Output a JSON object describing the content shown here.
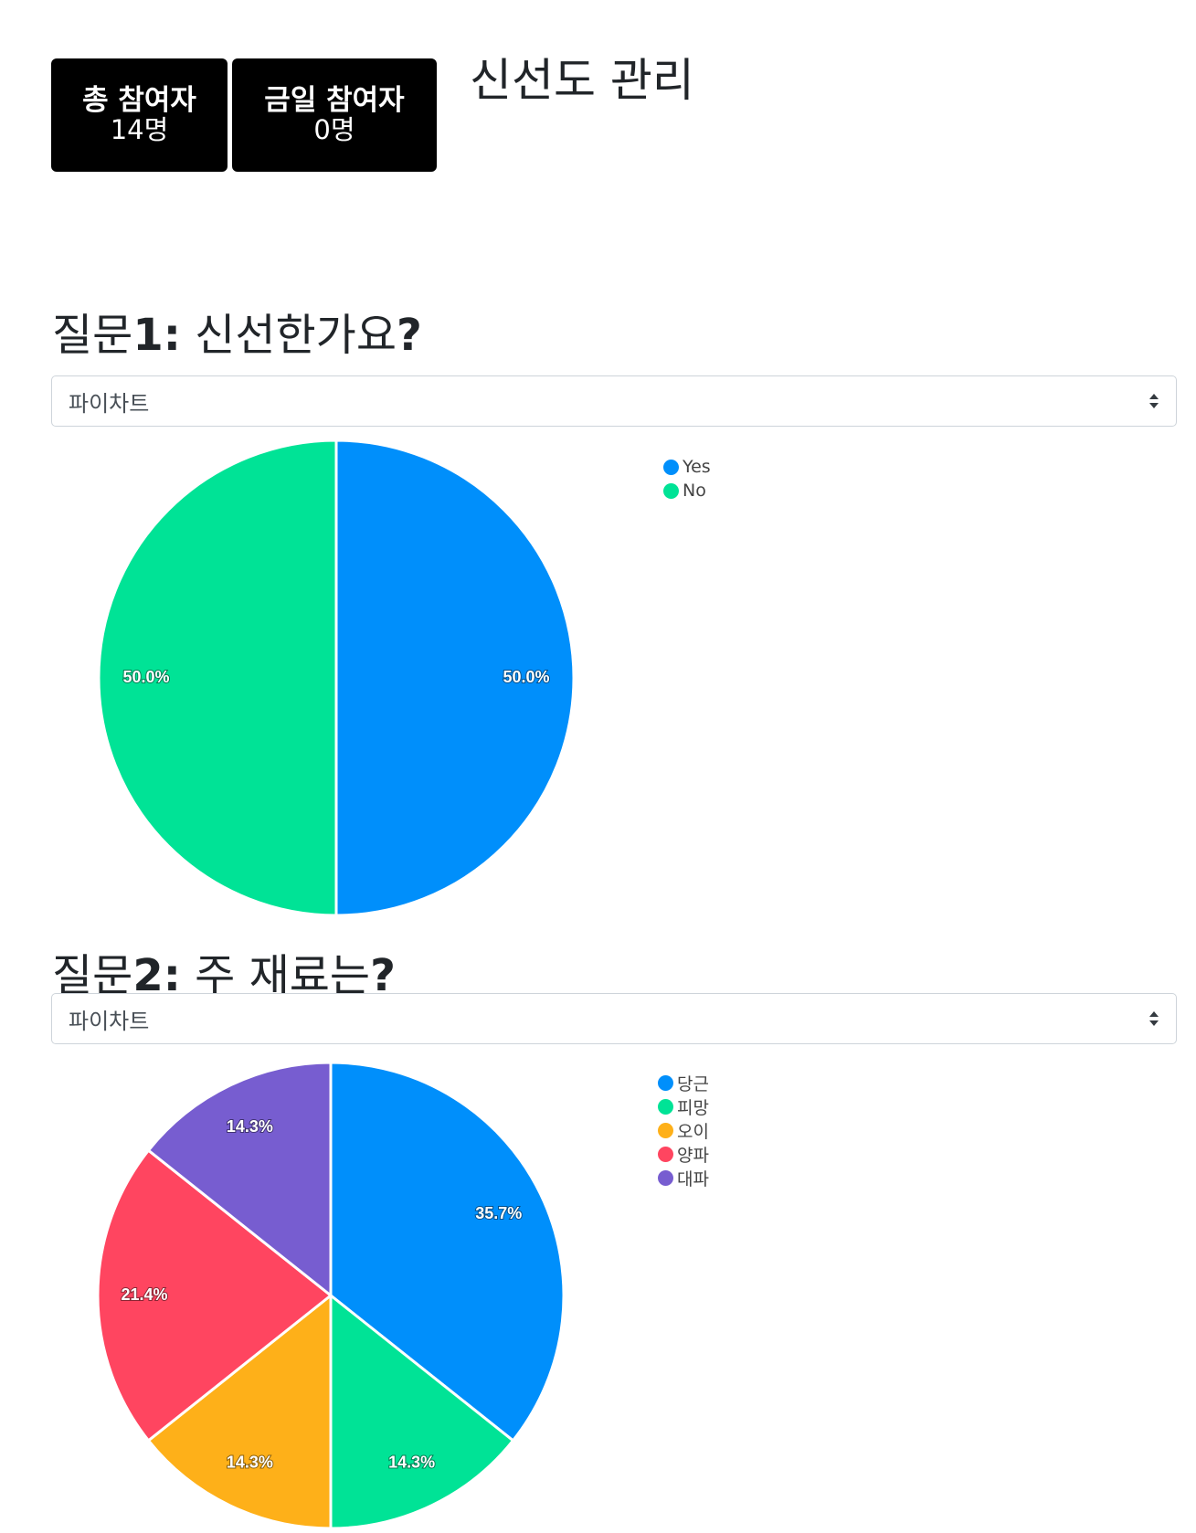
{
  "stats": {
    "total": {
      "label": "총 참여자",
      "value": "14명"
    },
    "today": {
      "label": "금일 참여자",
      "value": "0명"
    }
  },
  "page_title": "신선도 관리",
  "questions": [
    {
      "title_prefix": "질문",
      "title_number": "1:",
      "title_text": " 신선한가요",
      "title_mark": "?",
      "chart_type_select": "파이차트"
    },
    {
      "title_prefix": "질문",
      "title_number": "2:",
      "title_text": " 주 재료는",
      "title_mark": "?",
      "chart_type_select": "파이차트"
    }
  ],
  "chart_data": [
    {
      "type": "pie",
      "title": "",
      "categories": [
        "Yes",
        "No"
      ],
      "values": [
        50.0,
        50.0
      ],
      "value_labels": [
        "50.0%",
        "50.0%"
      ],
      "colors": [
        "#008ffb",
        "#00e396"
      ],
      "legend": "top-right"
    },
    {
      "type": "pie",
      "title": "",
      "categories": [
        "당근",
        "피망",
        "오이",
        "양파",
        "대파"
      ],
      "values": [
        35.7,
        14.3,
        14.3,
        21.4,
        14.3
      ],
      "value_labels": [
        "35.7%",
        "14.3%",
        "14.3%",
        "21.4%",
        "14.3%"
      ],
      "colors": [
        "#008ffb",
        "#00e396",
        "#feb019",
        "#ff4560",
        "#775dd0"
      ],
      "legend": "top-right"
    }
  ],
  "icons": {
    "select_arrow": "sort-arrows-icon",
    "legend_marker": "circle-marker-icon"
  }
}
